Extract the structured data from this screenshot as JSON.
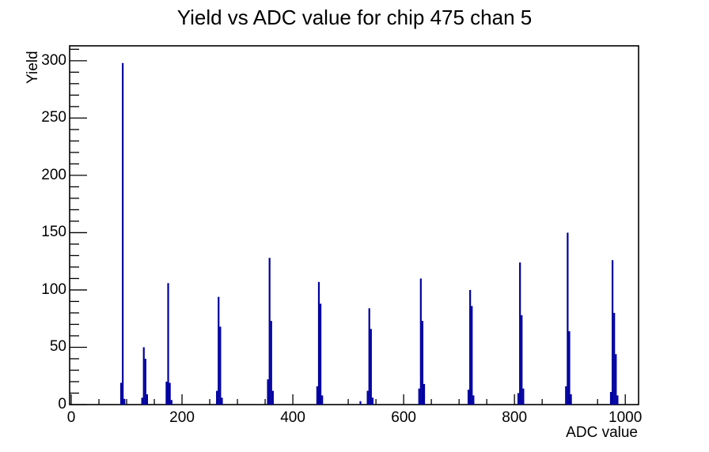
{
  "chart_data": {
    "type": "bar",
    "title": "Yield vs ADC value for chip 475 chan 5",
    "xlabel": "ADC value",
    "ylabel": "Yield",
    "xlim": [
      0,
      1024
    ],
    "ylim": [
      0,
      313
    ],
    "grid": false,
    "legend": false,
    "bar_color": "#0000a0",
    "axis_color": "#000000",
    "x_major_ticks": [
      0,
      200,
      400,
      600,
      800,
      1000
    ],
    "x_minor_step": 50,
    "y_major_ticks": [
      0,
      50,
      100,
      150,
      200,
      250,
      300
    ],
    "y_minor_step": 10,
    "peaks": [
      {
        "adc": 93,
        "yield": 298
      },
      {
        "adc": 131,
        "yield": 50
      },
      {
        "adc": 175,
        "yield": 106
      },
      {
        "adc": 266,
        "yield": 94
      },
      {
        "adc": 358,
        "yield": 128
      },
      {
        "adc": 447,
        "yield": 107
      },
      {
        "adc": 538,
        "yield": 84
      },
      {
        "adc": 631,
        "yield": 110
      },
      {
        "adc": 720,
        "yield": 100
      },
      {
        "adc": 810,
        "yield": 124
      },
      {
        "adc": 896,
        "yield": 150
      },
      {
        "adc": 977,
        "yield": 126
      }
    ],
    "bins": [
      [
        90,
        19
      ],
      [
        93,
        298
      ],
      [
        96,
        5
      ],
      [
        128,
        6
      ],
      [
        131,
        50
      ],
      [
        134,
        40
      ],
      [
        137,
        9
      ],
      [
        172,
        20
      ],
      [
        175,
        106
      ],
      [
        178,
        19
      ],
      [
        181,
        4
      ],
      [
        263,
        12
      ],
      [
        266,
        94
      ],
      [
        269,
        68
      ],
      [
        272,
        6
      ],
      [
        355,
        22
      ],
      [
        358,
        128
      ],
      [
        361,
        73
      ],
      [
        364,
        12
      ],
      [
        444,
        16
      ],
      [
        447,
        107
      ],
      [
        450,
        88
      ],
      [
        453,
        8
      ],
      [
        522,
        3
      ],
      [
        535,
        12
      ],
      [
        538,
        84
      ],
      [
        541,
        66
      ],
      [
        544,
        6
      ],
      [
        628,
        14
      ],
      [
        631,
        110
      ],
      [
        634,
        73
      ],
      [
        637,
        18
      ],
      [
        717,
        13
      ],
      [
        720,
        100
      ],
      [
        723,
        86
      ],
      [
        726,
        8
      ],
      [
        807,
        10
      ],
      [
        810,
        124
      ],
      [
        813,
        78
      ],
      [
        816,
        14
      ],
      [
        893,
        16
      ],
      [
        896,
        150
      ],
      [
        899,
        64
      ],
      [
        902,
        9
      ],
      [
        974,
        11
      ],
      [
        977,
        126
      ],
      [
        980,
        80
      ],
      [
        983,
        44
      ],
      [
        986,
        8
      ]
    ]
  }
}
